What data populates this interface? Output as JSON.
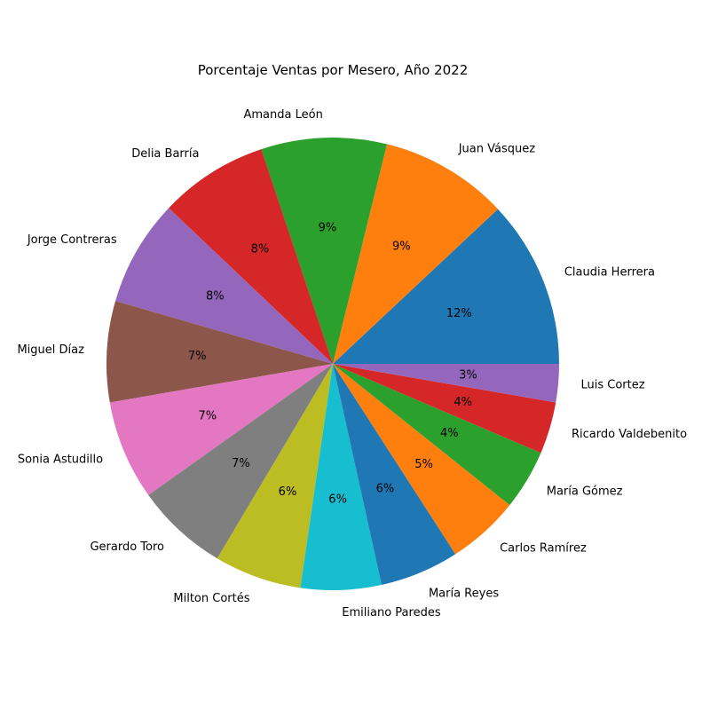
{
  "chart_data": {
    "type": "pie",
    "title": "Porcentaje Ventas por Mesero, Año 2022",
    "start_angle": 0,
    "direction": "counterclockwise",
    "slices": [
      {
        "label": "Claudia Herrera",
        "value": 12.3,
        "pct_label": "12%",
        "color": "#1f77b4"
      },
      {
        "label": "Juan Vásquez",
        "value": 9.4,
        "pct_label": "9%",
        "color": "#ff7f0e"
      },
      {
        "label": "Amanda León",
        "value": 9.2,
        "pct_label": "9%",
        "color": "#2ca02c"
      },
      {
        "label": "Delia Barría",
        "value": 8.0,
        "pct_label": "8%",
        "color": "#d62728"
      },
      {
        "label": "Jorge Contreras",
        "value": 7.8,
        "pct_label": "8%",
        "color": "#9467bd"
      },
      {
        "label": "Miguel Díaz",
        "value": 7.4,
        "pct_label": "7%",
        "color": "#8c564b"
      },
      {
        "label": "Sonia Astudillo",
        "value": 7.3,
        "pct_label": "7%",
        "color": "#e377c2"
      },
      {
        "label": "Gerardo Toro",
        "value": 6.8,
        "pct_label": "7%",
        "color": "#7f7f7f"
      },
      {
        "label": "Milton Cortés",
        "value": 6.4,
        "pct_label": "6%",
        "color": "#bcbd22"
      },
      {
        "label": "Emiliano Paredes",
        "value": 5.9,
        "pct_label": "6%",
        "color": "#17becf"
      },
      {
        "label": "María Reyes",
        "value": 5.8,
        "pct_label": "6%",
        "color": "#1f77b4"
      },
      {
        "label": "Carlos Ramírez",
        "value": 5.3,
        "pct_label": "5%",
        "color": "#ff7f0e"
      },
      {
        "label": "María Gómez",
        "value": 4.4,
        "pct_label": "4%",
        "color": "#2ca02c"
      },
      {
        "label": "Ricardo Valdebenito",
        "value": 3.8,
        "pct_label": "4%",
        "color": "#d62728"
      },
      {
        "label": "Luis Cortez",
        "value": 2.8,
        "pct_label": "3%",
        "color": "#9467bd"
      }
    ]
  }
}
